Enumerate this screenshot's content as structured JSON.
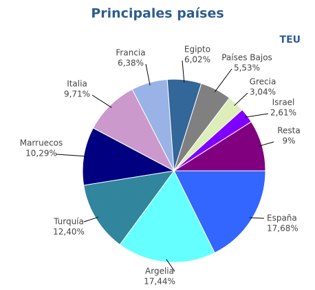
{
  "chart_data": {
    "type": "pie",
    "title": "Principales países",
    "unit": "TEU",
    "categories": [
      "España",
      "Argelia",
      "Turquía",
      "Marruecos",
      "Italia",
      "Francia",
      "Egipto",
      "Países Bajos",
      "Grecia",
      "Israel",
      "Resta"
    ],
    "values": [
      17.68,
      17.44,
      12.4,
      10.29,
      9.71,
      6.38,
      6.02,
      5.53,
      3.04,
      2.61,
      9
    ],
    "value_labels": [
      "17,68%",
      "17,44%",
      "12,40%",
      "10,29%",
      "9,71%",
      "6,38%",
      "6,02%",
      "5,53%",
      "3,04%",
      "2,61%",
      "9%"
    ],
    "colors": [
      "#3366ff",
      "#66ffff",
      "#31859c",
      "#000080",
      "#cc99cc",
      "#99b3e6",
      "#336699",
      "#808080",
      "#ddeebb",
      "#8000ff",
      "#800080"
    ]
  }
}
